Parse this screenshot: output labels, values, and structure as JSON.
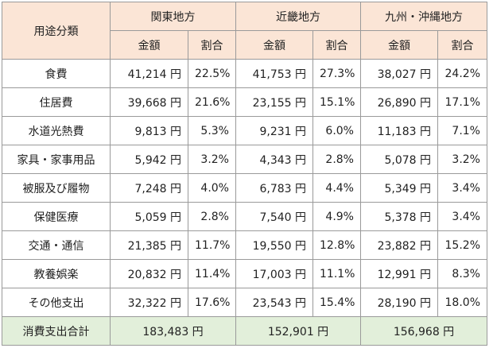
{
  "header": {
    "row_label": "用途分類",
    "regions": [
      "関東地方",
      "近畿地方",
      "九州・沖縄地方"
    ],
    "subheaders": [
      "金額",
      "割合"
    ]
  },
  "rows": [
    {
      "label": "食費",
      "cells": [
        "41,214 円",
        "22.5%",
        "41,753 円",
        "27.3%",
        "38,027 円",
        "24.2%"
      ]
    },
    {
      "label": "住居費",
      "cells": [
        "39,668 円",
        "21.6%",
        "23,155 円",
        "15.1%",
        "26,890 円",
        "17.1%"
      ]
    },
    {
      "label": "水道光熱費",
      "cells": [
        "9,813 円",
        "5.3%",
        "9,231 円",
        "6.0%",
        "11,183 円",
        "7.1%"
      ]
    },
    {
      "label": "家具・家事用品",
      "cells": [
        "5,942 円",
        "3.2%",
        "4,343 円",
        "2.8%",
        "5,078 円",
        "3.2%"
      ]
    },
    {
      "label": "被服及び履物",
      "cells": [
        "7,248 円",
        "4.0%",
        "6,783 円",
        "4.4%",
        "5,349 円",
        "3.4%"
      ]
    },
    {
      "label": "保健医療",
      "cells": [
        "5,059 円",
        "2.8%",
        "7,540 円",
        "4.9%",
        "5,378 円",
        "3.4%"
      ]
    },
    {
      "label": "交通・通信",
      "cells": [
        "21,385 円",
        "11.7%",
        "19,550 円",
        "12.8%",
        "23,882 円",
        "15.2%"
      ]
    },
    {
      "label": "教養娯楽",
      "cells": [
        "20,832 円",
        "11.4%",
        "17,003 円",
        "11.1%",
        "12,991 円",
        "8.3%"
      ]
    },
    {
      "label": "その他支出",
      "cells": [
        "32,322 円",
        "17.6%",
        "23,543 円",
        "15.4%",
        "28,190 円",
        "18.0%"
      ]
    }
  ],
  "footer": {
    "label": "消費支出合計",
    "totals": [
      "183,483 円",
      "152,901 円",
      "156,968 円"
    ]
  }
}
